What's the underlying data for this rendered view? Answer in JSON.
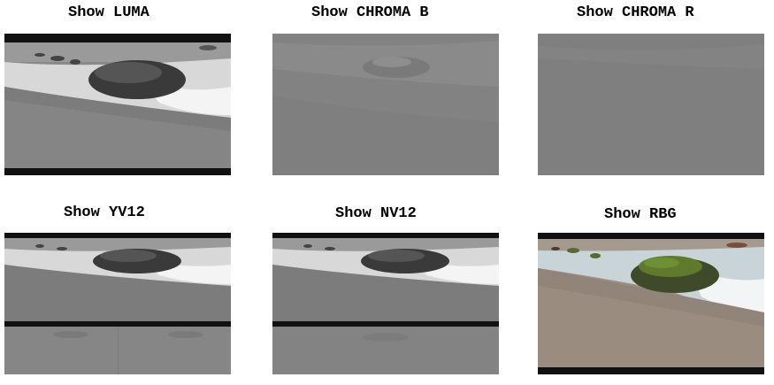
{
  "panels": [
    {
      "id": "luma",
      "title": "Show LUMA"
    },
    {
      "id": "chroma-b",
      "title": "Show CHROMA B"
    },
    {
      "id": "chroma-r",
      "title": "Show CHROMA R"
    },
    {
      "id": "yv12",
      "title": "Show YV12"
    },
    {
      "id": "nv12",
      "title": "Show NV12"
    },
    {
      "id": "rgb",
      "title": "Show RBG"
    }
  ]
}
